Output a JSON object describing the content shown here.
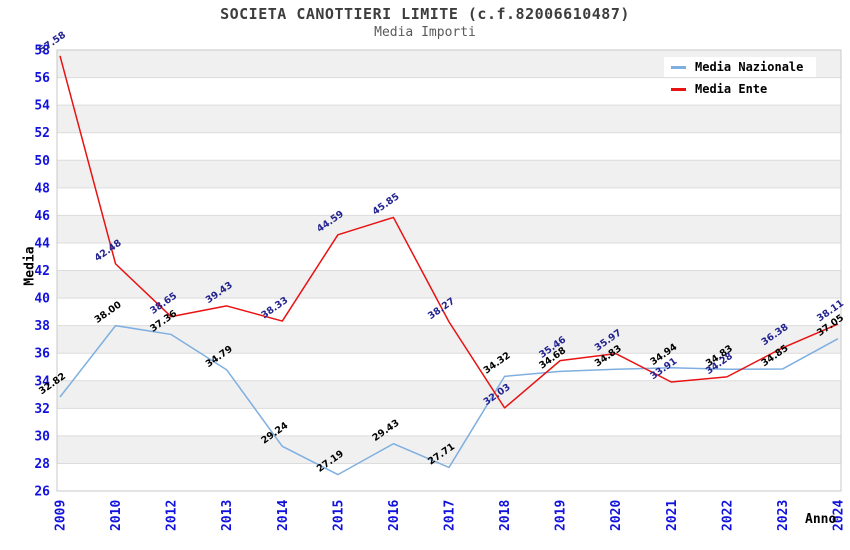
{
  "chart_data": {
    "type": "line",
    "title": "SOCIETA CANOTTIERI LIMITE (c.f.82006610487)",
    "subtitle": "Media Importi",
    "xlabel": "Anno",
    "ylabel": "Media",
    "ylim": [
      26,
      58
    ],
    "ytick_step": 2,
    "grid": "horizontal-alternating-bands",
    "legend_position": "top-right",
    "categories": [
      "2009",
      "2010",
      "2012",
      "2013",
      "2014",
      "2015",
      "2016",
      "2017",
      "2018",
      "2019",
      "2020",
      "2021",
      "2022",
      "2023",
      "2024"
    ],
    "series": [
      {
        "name": "Media Nazionale",
        "color": "#7FAFE0",
        "label_color": "#000000",
        "values": [
          32.82,
          38.0,
          37.36,
          34.79,
          29.24,
          27.19,
          29.43,
          27.71,
          34.32,
          34.68,
          34.83,
          34.94,
          34.83,
          34.85,
          37.05
        ]
      },
      {
        "name": "Media Ente",
        "color": "#E81212",
        "label_color": "#23238F",
        "values": [
          57.58,
          42.48,
          38.65,
          39.43,
          38.33,
          44.59,
          45.85,
          38.27,
          32.03,
          35.46,
          35.97,
          33.91,
          34.28,
          36.38,
          38.11
        ]
      }
    ],
    "colors": {
      "tick_label": "#1212DD",
      "title": "#3d3d3d",
      "subtitle": "#5a5a5a",
      "band_gray": "#F0F0F0",
      "band_white": "#FFFFFF",
      "gridline": "#DCDCDC",
      "plot_border": "#C8C8C8",
      "legend_bg": "#FFFFFF"
    }
  }
}
